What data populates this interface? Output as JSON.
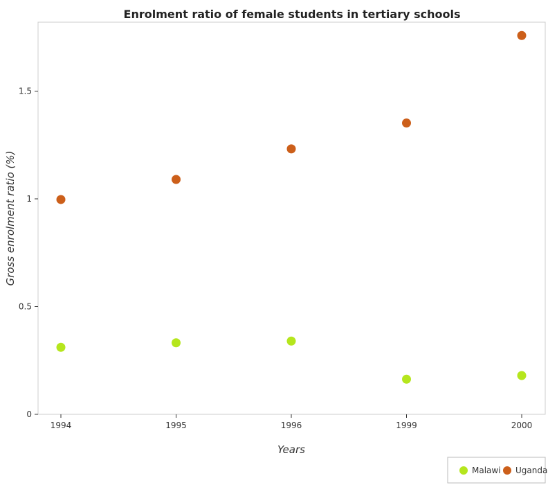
{
  "chart_data": {
    "type": "scatter",
    "title": "Enrolment ratio of female students in tertiary schools",
    "xlabel": "Years",
    "ylabel": "Gross enrolment ratio (%)",
    "categories": [
      "1994",
      "1995",
      "1996",
      "1999",
      "2000"
    ],
    "ylim": [
      0,
      1.82
    ],
    "yticks": [
      0,
      0.5,
      1,
      1.5
    ],
    "ytick_labels": [
      "0",
      "0.5",
      "1",
      "1.5"
    ],
    "grid": false,
    "legend_position": "bottom-right",
    "series": [
      {
        "name": "Malawi",
        "color": "#b5e61d",
        "values": [
          0.311,
          0.332,
          0.34,
          0.163,
          0.18
        ]
      },
      {
        "name": "Uganda",
        "color": "#cc5f1a",
        "values": [
          0.997,
          1.09,
          1.232,
          1.352,
          1.758
        ]
      }
    ]
  }
}
